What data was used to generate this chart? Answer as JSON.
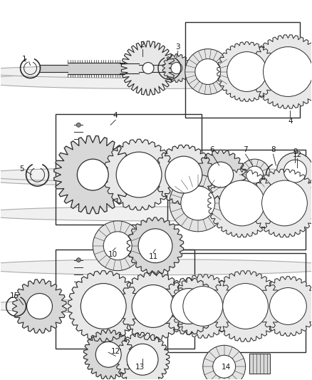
{
  "background_color": "#ffffff",
  "line_color": "#2a2a2a",
  "label_color": "#1a1a1a",
  "label_fontsize": 7.5,
  "fig_width": 4.38,
  "fig_height": 5.33,
  "dpi": 100
}
